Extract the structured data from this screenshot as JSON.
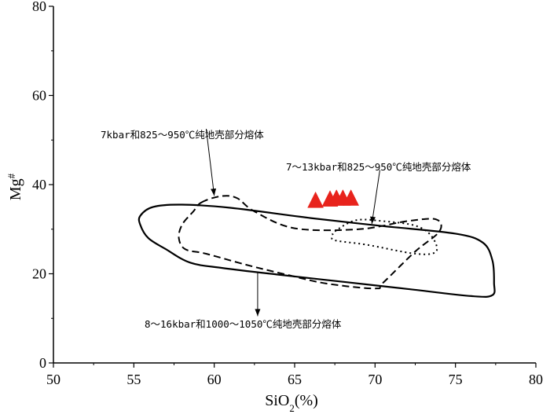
{
  "chart_data": {
    "type": "scatter",
    "xlabel_main": "SiO",
    "xlabel_sub": "2",
    "xlabel_unit": "(%)",
    "ylabel_main": "Mg",
    "ylabel_sup": "#",
    "xlim": [
      50,
      80
    ],
    "ylim": [
      0,
      80
    ],
    "x_ticks": [
      50,
      55,
      60,
      65,
      70,
      75,
      80
    ],
    "y_ticks": [
      0,
      20,
      40,
      60,
      80
    ],
    "grid": false,
    "regions": [
      {
        "label": "8～16kbar和1000～1050℃纯地壳部分熔体",
        "style": "solid",
        "points": [
          [
            55.4,
            33
          ],
          [
            55.4,
            31
          ],
          [
            55.9,
            28
          ],
          [
            57.0,
            25.5
          ],
          [
            58.5,
            22.5
          ],
          [
            60.5,
            21.3
          ],
          [
            64,
            19.8
          ],
          [
            68,
            18.2
          ],
          [
            72,
            16.6
          ],
          [
            76,
            15
          ],
          [
            77.3,
            15.2
          ],
          [
            77.4,
            18
          ],
          [
            77.3,
            23
          ],
          [
            76.7,
            27
          ],
          [
            75,
            29
          ],
          [
            70.5,
            30.7
          ],
          [
            66,
            32.5
          ],
          [
            61,
            34.8
          ],
          [
            58,
            35.5
          ],
          [
            56.2,
            35
          ],
          [
            55.4,
            33
          ]
        ]
      },
      {
        "label": "7kbar和825～950℃纯地壳部分熔体",
        "style": "dashed",
        "points": [
          [
            59.2,
            36
          ],
          [
            60.4,
            37.4
          ],
          [
            61.4,
            37
          ],
          [
            62.5,
            34
          ],
          [
            65,
            30.2
          ],
          [
            69,
            30
          ],
          [
            72,
            31.8
          ],
          [
            73.8,
            32.2
          ],
          [
            74,
            29.5
          ],
          [
            72.5,
            25
          ],
          [
            70.5,
            18
          ],
          [
            70,
            16.7
          ],
          [
            67,
            17.8
          ],
          [
            64.5,
            19.8
          ],
          [
            62,
            22
          ],
          [
            59.5,
            24.5
          ],
          [
            58.2,
            25.5
          ],
          [
            57.8,
            28
          ],
          [
            58,
            31
          ],
          [
            58.7,
            34
          ],
          [
            59.2,
            36
          ]
        ]
      },
      {
        "label": "7～13kbar和825～950℃纯地壳部分熔体",
        "style": "dotted",
        "points": [
          [
            67.5,
            29.5
          ],
          [
            68.8,
            32
          ],
          [
            70.5,
            31.8
          ],
          [
            72.5,
            30.8
          ],
          [
            73.5,
            28.5
          ],
          [
            73.8,
            25
          ],
          [
            72.5,
            24.5
          ],
          [
            69.5,
            26.5
          ],
          [
            67.5,
            27.5
          ],
          [
            67.4,
            28.5
          ],
          [
            67.5,
            29.5
          ]
        ]
      }
    ],
    "points": [
      {
        "x": 66.3,
        "y": 36.5
      },
      {
        "x": 67.2,
        "y": 36.8
      },
      {
        "x": 67.6,
        "y": 37.0
      },
      {
        "x": 68.0,
        "y": 37.0
      },
      {
        "x": 68.5,
        "y": 37.0
      }
    ],
    "point_color": "#e8231c",
    "point_marker": "triangle",
    "annotations": [
      {
        "text": "7kbar和825～950℃纯地壳部分熔体",
        "target": [
          60.0,
          37.5
        ],
        "label_anchor": [
          59.5,
          52.5
        ]
      },
      {
        "text": "7～13kbar和825～950℃纯地壳部分熔体",
        "target": [
          69.8,
          31.2
        ],
        "label_anchor": [
          70.3,
          43.3
        ]
      },
      {
        "text": "8～16kbar和1000～1050℃纯地壳部分熔体",
        "target": [
          62.7,
          10.5
        ],
        "label_anchor": [
          62.7,
          20.5
        ]
      }
    ]
  }
}
